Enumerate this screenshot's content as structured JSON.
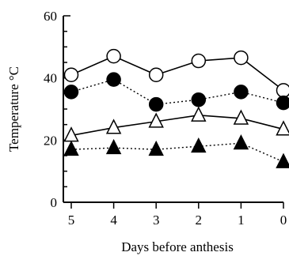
{
  "chart_data": {
    "type": "line",
    "xlabel": "Days before anthesis",
    "ylabel": "Temperature °C",
    "x": [
      5,
      4,
      3,
      2,
      1,
      0
    ],
    "x_ticks": [
      "5",
      "4",
      "3",
      "2",
      "1",
      "0"
    ],
    "xlim": [
      5,
      0
    ],
    "y_ticks": [
      "0",
      "20",
      "40",
      "60"
    ],
    "ylim": [
      0,
      60
    ],
    "grid": false,
    "series": [
      {
        "marker": "open-circle",
        "line": "solid",
        "values": [
          41,
          47,
          41,
          45.5,
          46.5,
          36
        ]
      },
      {
        "marker": "filled-circle",
        "line": "dotted",
        "values": [
          35.5,
          39.5,
          31.5,
          33,
          35.5,
          32
        ]
      },
      {
        "marker": "open-triangle",
        "line": "solid",
        "values": [
          21.5,
          24,
          26,
          28,
          27,
          23.5
        ]
      },
      {
        "marker": "filled-triangle",
        "line": "dotted",
        "values": [
          17,
          17.5,
          17,
          18,
          19,
          13
        ]
      }
    ]
  }
}
